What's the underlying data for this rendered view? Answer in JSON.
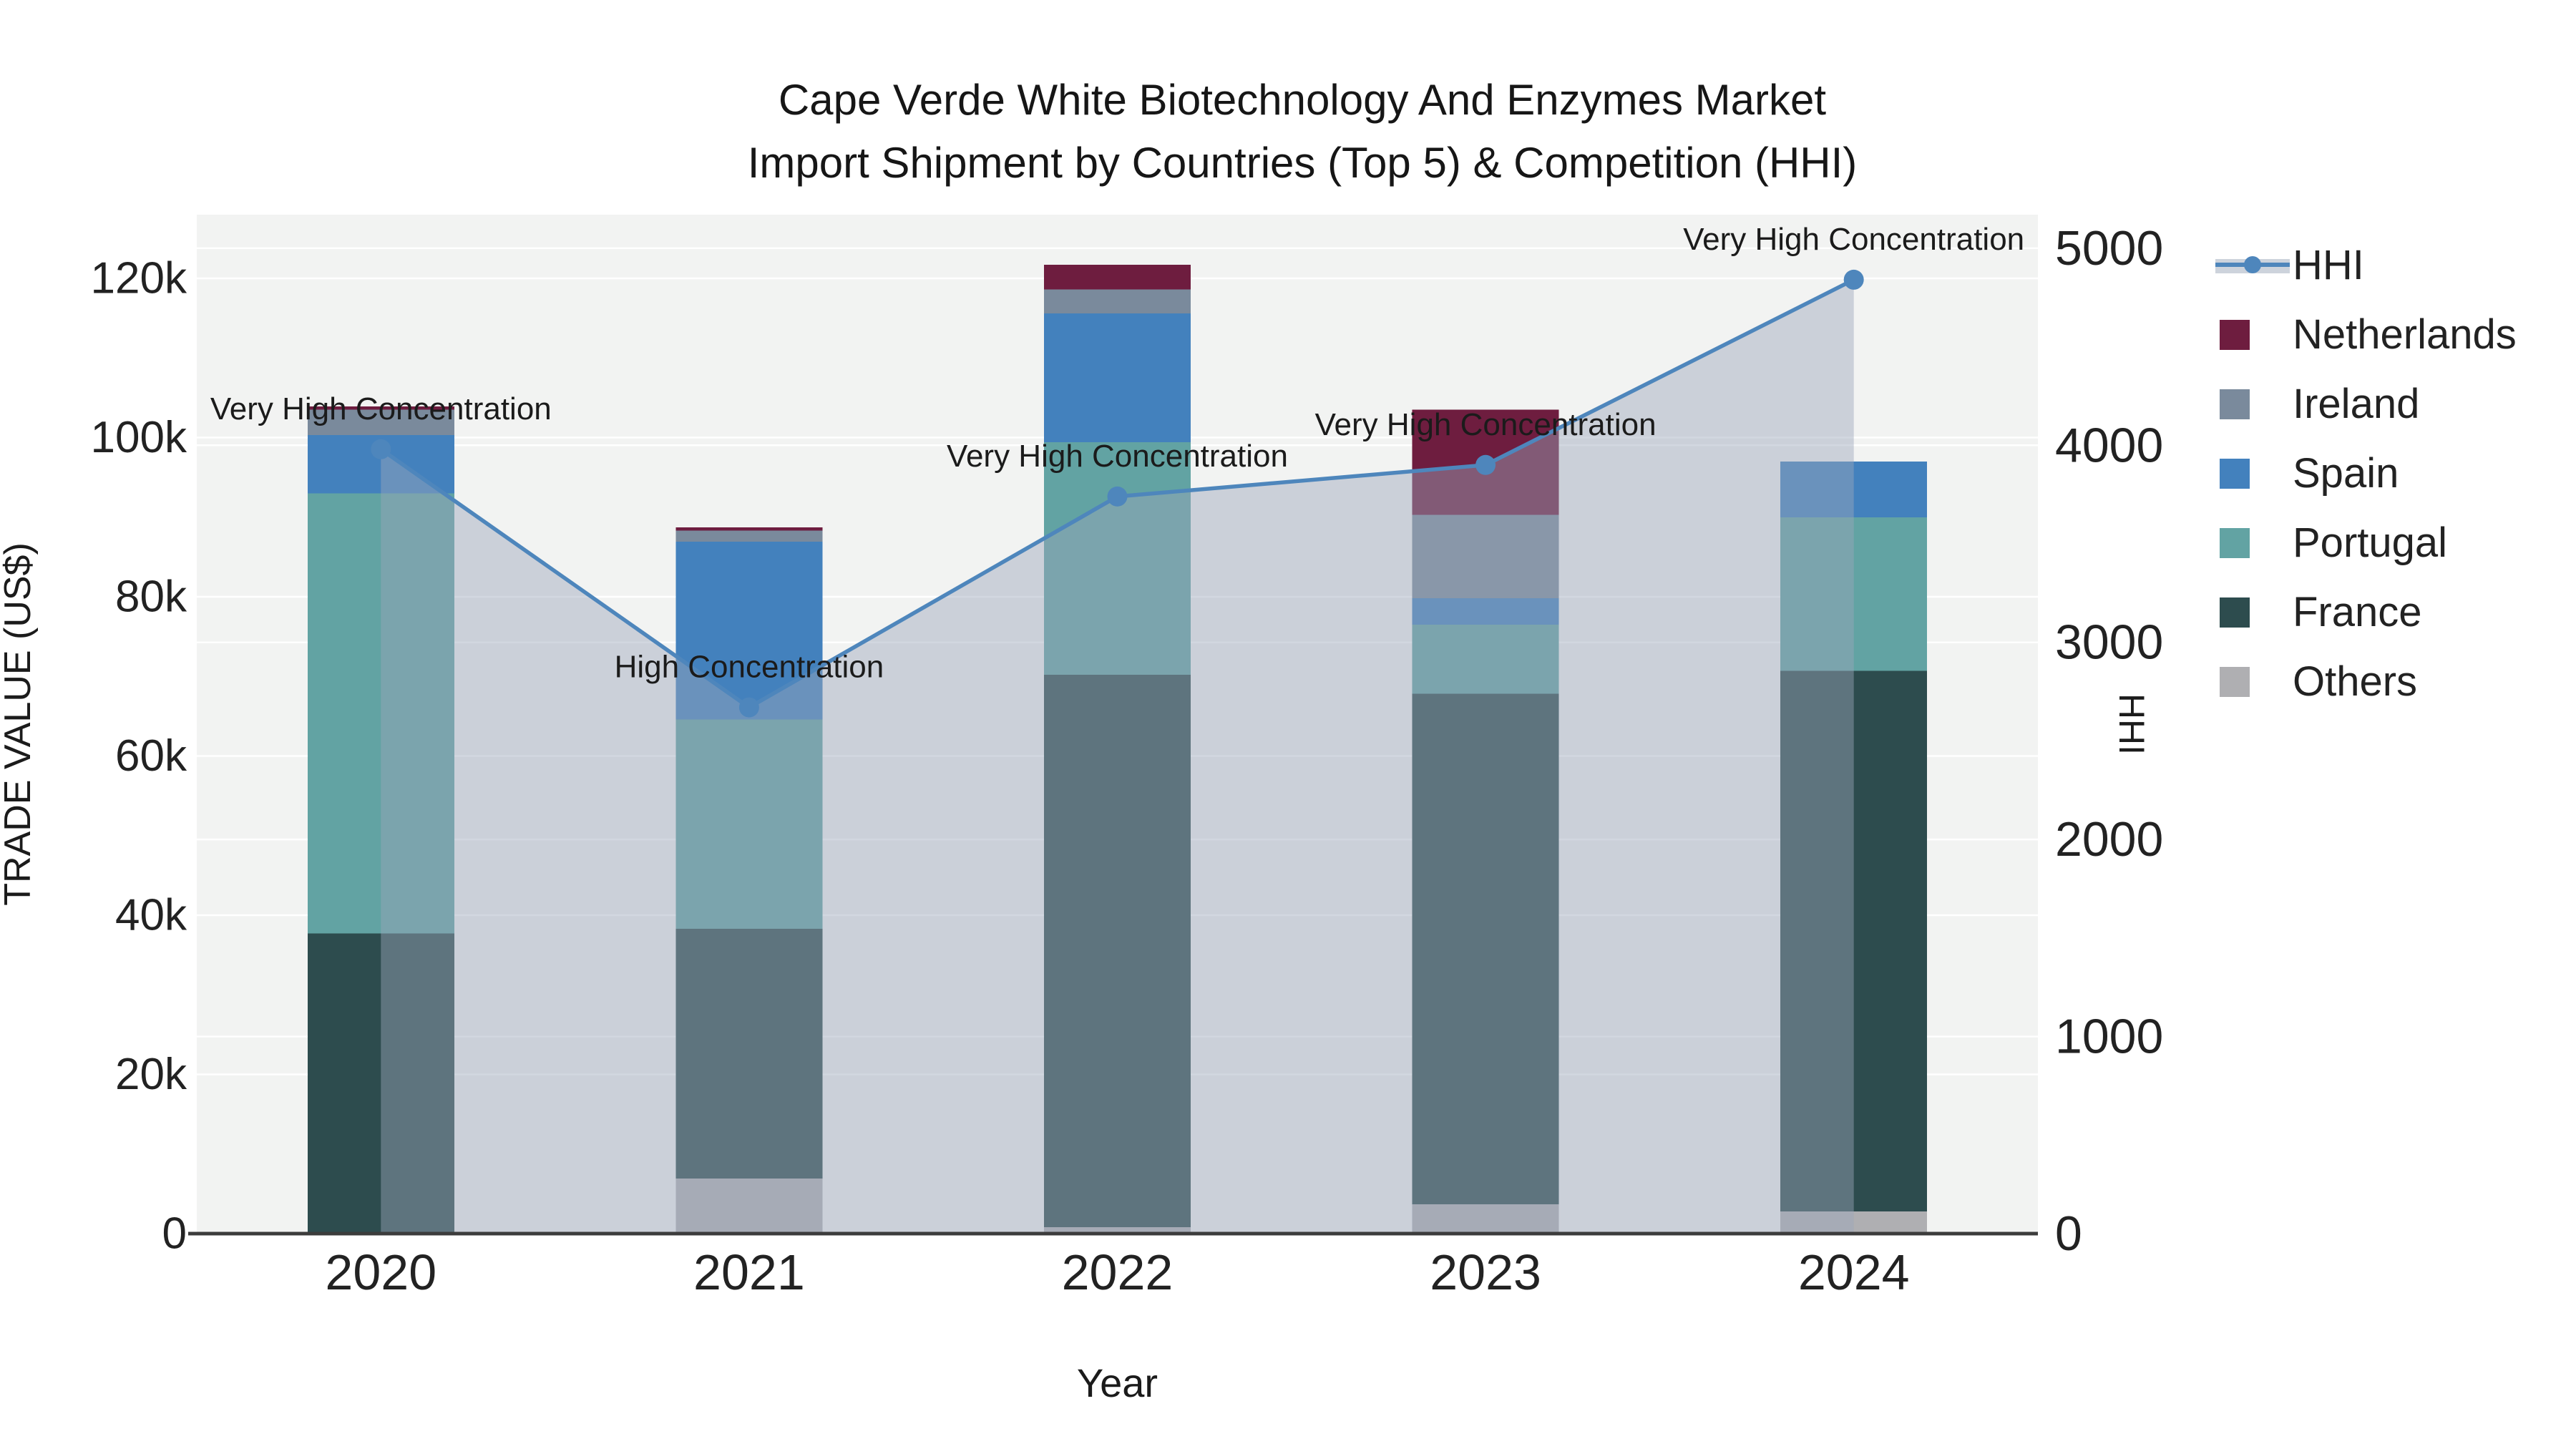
{
  "chart_data": {
    "type": [
      "bar",
      "line"
    ],
    "title_line1": "Cape Verde White Biotechnology And Enzymes Market",
    "title_line2": "Import Shipment by Countries (Top 5) & Competition (HHI)",
    "categories": [
      "2020",
      "2021",
      "2022",
      "2023",
      "2024"
    ],
    "stack_order": [
      "Others",
      "France",
      "Portugal",
      "Spain",
      "Ireland",
      "Netherlands"
    ],
    "series": [
      {
        "name": "Netherlands",
        "color": "#6E1D3F",
        "values": [
          400,
          400,
          3100,
          13200,
          0
        ]
      },
      {
        "name": "Ireland",
        "color": "#7A8A9C",
        "values": [
          3200,
          1400,
          3000,
          10500,
          0
        ]
      },
      {
        "name": "Spain",
        "color": "#4381BD",
        "values": [
          7300,
          22300,
          16200,
          3300,
          7000
        ]
      },
      {
        "name": "Portugal",
        "color": "#62A3A3",
        "values": [
          55300,
          26300,
          29200,
          8700,
          19300
        ]
      },
      {
        "name": "France",
        "color": "#2D4C4E",
        "values": [
          37700,
          31400,
          69400,
          64100,
          67900
        ]
      },
      {
        "name": "Others",
        "color": "#AFAFB2",
        "values": [
          0,
          6900,
          800,
          3700,
          2800
        ]
      }
    ],
    "hhi": {
      "name": "HHI",
      "line_color": "#4E86BC",
      "area_color": "rgba(155,166,186,0.45)",
      "values": [
        3980,
        2670,
        3740,
        3900,
        4840
      ]
    },
    "annotations": [
      {
        "x": "2020",
        "text": "Very High Concentration"
      },
      {
        "x": "2021",
        "text": "High Concentration"
      },
      {
        "x": "2022",
        "text": "Very High Concentration"
      },
      {
        "x": "2023",
        "text": "Very High Concentration"
      },
      {
        "x": "2024",
        "text": "Very High Concentration"
      }
    ],
    "y_left": {
      "label": "TRADE VALUE (US$)",
      "tick_values": [
        0,
        20000,
        40000,
        60000,
        80000,
        100000,
        120000
      ],
      "tick_labels": [
        "0",
        "20k",
        "40k",
        "60k",
        "80k",
        "100k",
        "120k"
      ],
      "range": [
        0,
        128000
      ]
    },
    "y_right": {
      "label": "HHI",
      "tick_values": [
        0,
        1000,
        2000,
        3000,
        4000,
        5000
      ],
      "tick_labels": [
        "0",
        "1000",
        "2000",
        "3000",
        "4000",
        "5000"
      ],
      "range": [
        0,
        5170
      ]
    },
    "x_axis": {
      "label": "Year"
    },
    "legend_order": [
      "HHI",
      "Netherlands",
      "Ireland",
      "Spain",
      "Portugal",
      "France",
      "Others"
    ],
    "grid": true,
    "plot_bg": "#F2F3F2",
    "grid_color": "#FFFFFF",
    "axis_line_color": "#3C3C3C",
    "text_color": "#1B1B1B"
  }
}
